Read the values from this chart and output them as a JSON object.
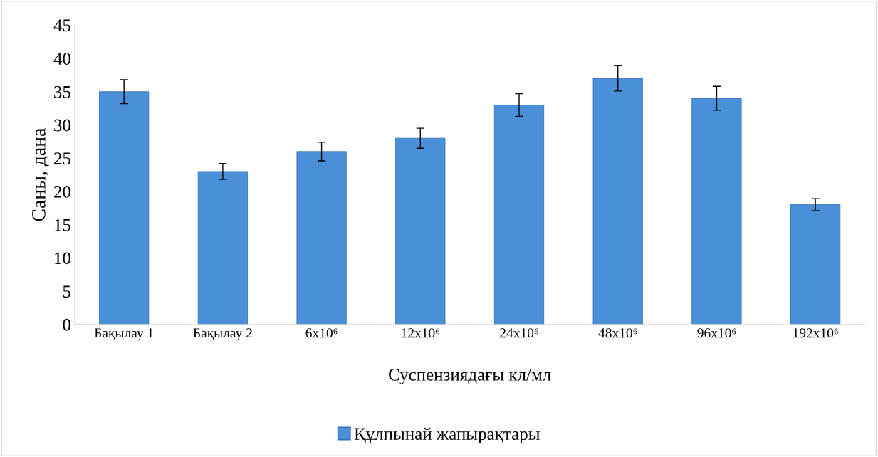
{
  "chart_data": {
    "type": "bar",
    "xlabel": "Суспензиядағы кл/мл",
    "ylabel": "Саны, дана",
    "categories": [
      "Бақылау 1",
      "Бақылау 2",
      "6x10⁶",
      "12x10⁶",
      "24x10⁶",
      "48x10⁶",
      "96x10⁶",
      "192x10⁶"
    ],
    "series": [
      {
        "name": "Құлпынай жапырақтары",
        "color": "#4a90d9",
        "values": [
          35,
          23,
          26,
          28,
          33,
          37,
          34,
          18
        ],
        "errors": [
          1.8,
          1.2,
          1.4,
          1.5,
          1.7,
          1.9,
          1.8,
          0.9
        ]
      }
    ],
    "ylim": [
      0,
      45
    ],
    "yticks": [
      0,
      5,
      10,
      15,
      20,
      25,
      30,
      35,
      40,
      45
    ],
    "grid": false,
    "legend": "bottom"
  }
}
